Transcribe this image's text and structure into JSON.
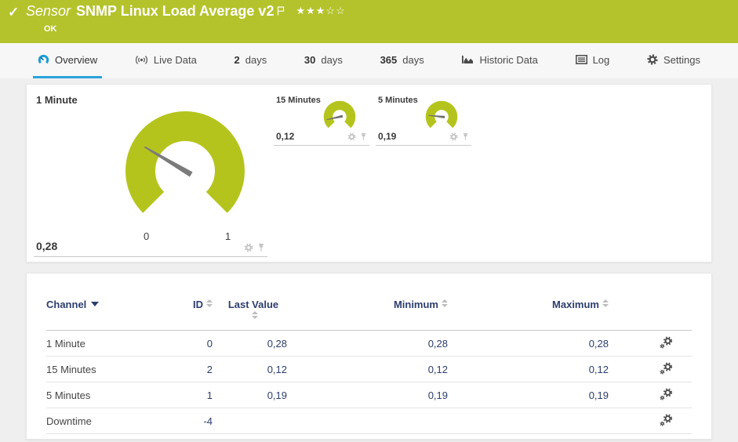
{
  "sensor": {
    "kind_label": "Sensor",
    "name": "SNMP Linux Load Average v2",
    "status": "OK",
    "stars_display": "★★★☆☆",
    "stars_filled": 3,
    "stars_total": 5
  },
  "tabs": [
    {
      "label": "Overview",
      "icon": "gauge-icon",
      "active": true
    },
    {
      "label": "Live Data",
      "icon": "broadcast-icon",
      "active": false
    },
    {
      "bold": "2",
      "label": "days",
      "active": false
    },
    {
      "bold": "30",
      "label": "days",
      "active": false
    },
    {
      "bold": "365",
      "label": "days",
      "active": false
    },
    {
      "label": "Historic Data",
      "icon": "area-chart-icon",
      "active": false
    },
    {
      "label": "Log",
      "icon": "log-icon",
      "active": false
    },
    {
      "label": "Settings",
      "icon": "gear-icon",
      "active": false
    }
  ],
  "gauges": [
    {
      "title": "1 Minute",
      "value": 0.28,
      "value_label": "0,28",
      "min": 0,
      "max": 1,
      "scale_min_label": "0",
      "scale_max_label": "1"
    },
    {
      "title": "15 Minutes",
      "value": 0.12,
      "value_label": "0,12",
      "min": 0,
      "max": 1
    },
    {
      "title": "5 Minutes",
      "value": 0.19,
      "value_label": "0,19",
      "min": 0,
      "max": 1
    }
  ],
  "chart_data": [
    {
      "type": "gauge",
      "title": "1 Minute",
      "value": 0.28,
      "range": [
        0,
        1
      ],
      "sweep_degrees": 270,
      "color": "#b5c41d"
    },
    {
      "type": "gauge",
      "title": "15 Minutes",
      "value": 0.12,
      "range": [
        0,
        1
      ],
      "sweep_degrees": 270,
      "color": "#b5c41d"
    },
    {
      "type": "gauge",
      "title": "5 Minutes",
      "value": 0.19,
      "range": [
        0,
        1
      ],
      "sweep_degrees": 270,
      "color": "#b5c41d"
    }
  ],
  "table": {
    "headers": {
      "channel": "Channel",
      "id": "ID",
      "last_value": "Last Value",
      "minimum": "Minimum",
      "maximum": "Maximum"
    },
    "rows": [
      {
        "channel": "1 Minute",
        "id": "0",
        "last": "0,28",
        "min": "0,28",
        "max": "0,28"
      },
      {
        "channel": "15 Minutes",
        "id": "2",
        "last": "0,12",
        "min": "0,12",
        "max": "0,12"
      },
      {
        "channel": "5 Minutes",
        "id": "1",
        "last": "0,19",
        "min": "0,19",
        "max": "0,19"
      },
      {
        "channel": "Downtime",
        "id": "-4",
        "last": "",
        "min": "",
        "max": ""
      }
    ]
  },
  "colors": {
    "header_bg": "#b4c32b",
    "gauge_green": "#b5c41d",
    "active_tab_blue": "#2aa3dc",
    "table_header_navy": "#2d3e6d",
    "status_white": "#ffffff"
  }
}
